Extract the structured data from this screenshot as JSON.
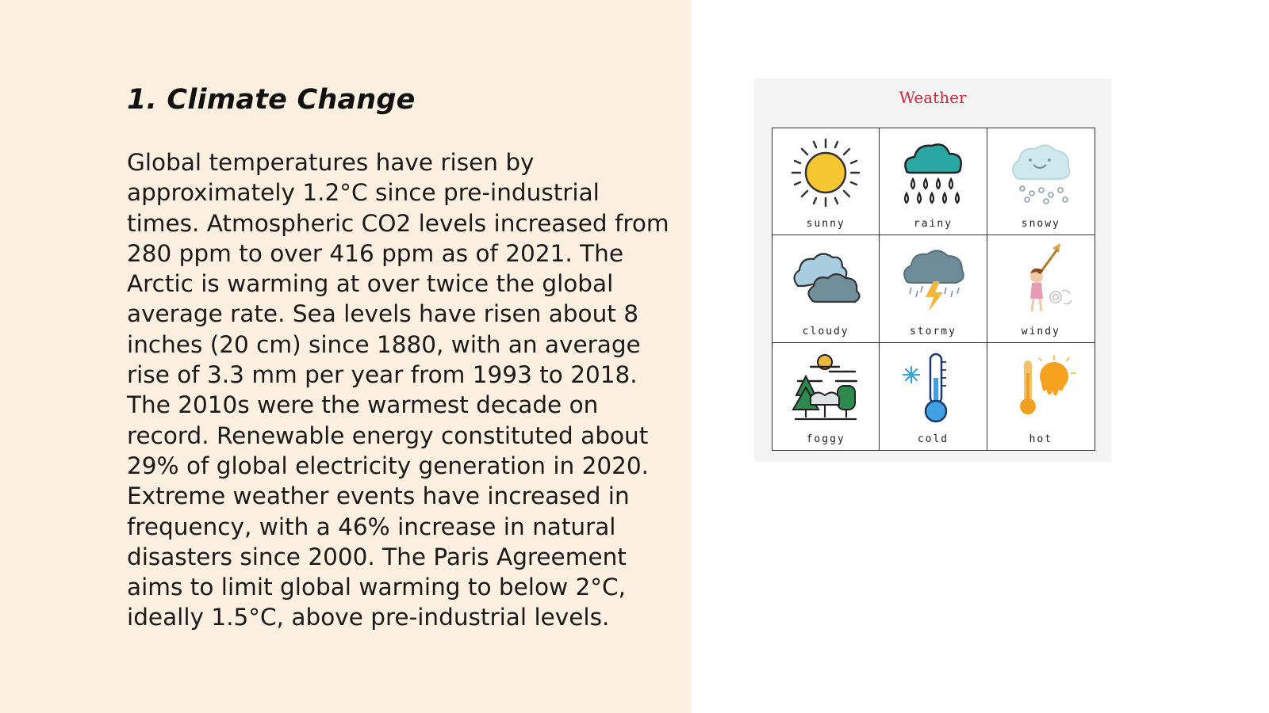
{
  "slide": {
    "title": "1. Climate Change",
    "body": "Global temperatures have risen by approximately 1.2°C since pre-industrial times. Atmospheric CO2 levels increased from 280 ppm to over 416 ppm as of 2021. The Arctic is warming at over twice the global average rate. Sea levels have risen about 8 inches (20 cm) since 1880, with an average rise of 3.3 mm per year from 1993 to 2018. The 2010s were the warmest decade on record. Renewable energy constituted about 29% of global electricity generation in 2020. Extreme weather events have increased in frequency, with a 46% increase in natural disasters since 2000. The Paris Agreement aims to limit global warming to below 2°C, ideally 1.5°C, above pre-industrial levels."
  },
  "colors": {
    "left_panel_bg": "#fdf0e0",
    "weather_title": "#d1283a"
  },
  "weather_chart": {
    "title": "Weather",
    "cells": [
      {
        "label": "sunny",
        "icon": "sun-icon"
      },
      {
        "label": "rainy",
        "icon": "rain-cloud-icon"
      },
      {
        "label": "snowy",
        "icon": "snow-cloud-icon"
      },
      {
        "label": "cloudy",
        "icon": "cloud-icon"
      },
      {
        "label": "stormy",
        "icon": "storm-cloud-icon"
      },
      {
        "label": "windy",
        "icon": "windy-girl-icon"
      },
      {
        "label": "foggy",
        "icon": "foggy-trees-icon"
      },
      {
        "label": "cold",
        "icon": "thermometer-icon"
      },
      {
        "label": "hot",
        "icon": "hot-sun-icon"
      }
    ]
  }
}
